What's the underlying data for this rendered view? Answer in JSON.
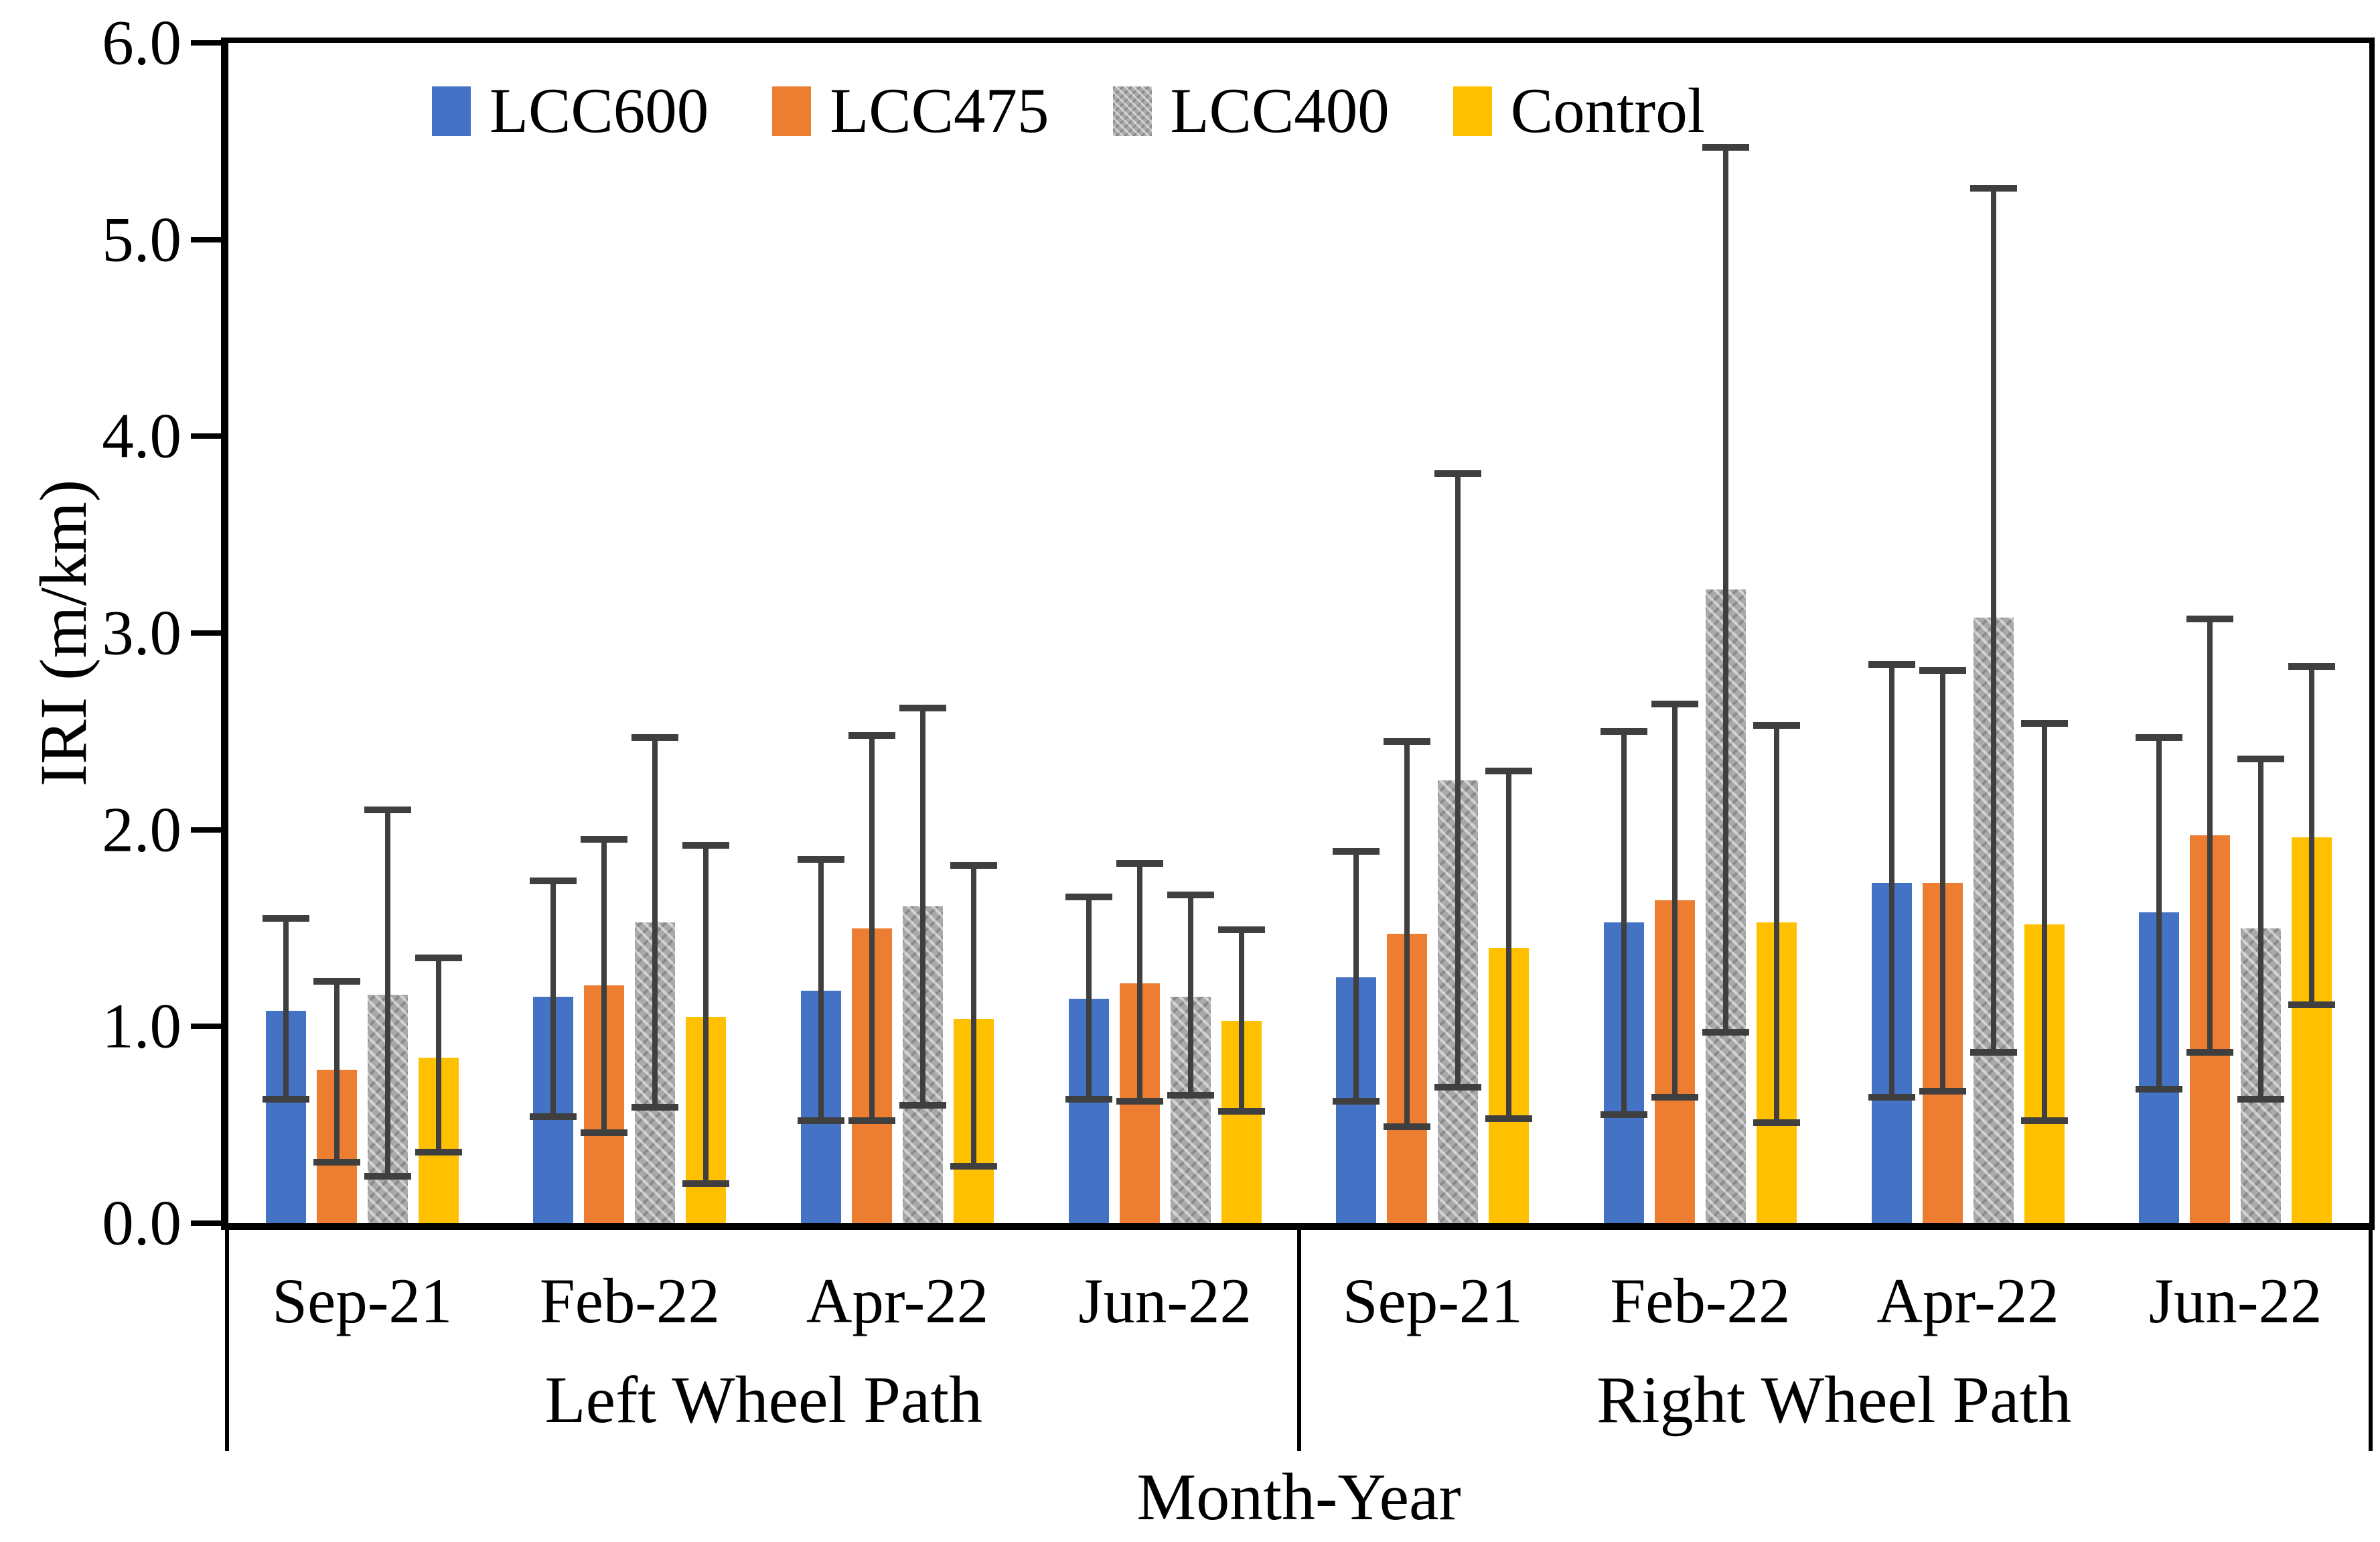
{
  "page": {
    "background": "#ffffff",
    "y_axis_title": "IRI (m/km)",
    "x_axis_title": "Month-Year"
  },
  "chart_data": {
    "type": "bar",
    "title": "",
    "ylabel": "IRI (m/km)",
    "xlabel": "Month-Year",
    "ylim": [
      0,
      6
    ],
    "ytick_step": 1.0,
    "ytick_labels": [
      "0.0",
      "1.0",
      "2.0",
      "3.0",
      "4.0",
      "5.0",
      "6.0"
    ],
    "grid": "off",
    "legend_position": "top-left-inside",
    "error_bar_color": "#3F3F3F",
    "axis_color": "#000000",
    "sections": [
      {
        "label": "Left Wheel Path",
        "months": [
          "Sep-21",
          "Feb-22",
          "Apr-22",
          "Jun-22"
        ]
      },
      {
        "label": "Right Wheel Path",
        "months": [
          "Sep-21",
          "Feb-22",
          "Apr-22",
          "Jun-22"
        ]
      }
    ],
    "categories": [
      "Left Wheel Path Sep-21",
      "Left Wheel Path Feb-22",
      "Left Wheel Path Apr-22",
      "Left Wheel Path Jun-22",
      "Right Wheel Path Sep-21",
      "Right Wheel Path Feb-22",
      "Right Wheel Path Apr-22",
      "Right Wheel Path Jun-22"
    ],
    "series": [
      {
        "name": "LCC600",
        "color": "#4472C4",
        "pattern": false,
        "values": [
          1.08,
          1.15,
          1.18,
          1.14,
          1.25,
          1.53,
          1.73,
          1.58
        ],
        "err_low": [
          0.63,
          0.54,
          0.52,
          0.63,
          0.62,
          0.55,
          0.64,
          0.68
        ],
        "err_high": [
          1.55,
          1.74,
          1.85,
          1.66,
          1.89,
          2.5,
          2.84,
          2.47
        ]
      },
      {
        "name": "LCC475",
        "color": "#ED7D31",
        "pattern": false,
        "values": [
          0.78,
          1.21,
          1.5,
          1.22,
          1.47,
          1.64,
          1.73,
          1.97
        ],
        "err_low": [
          0.31,
          0.46,
          0.52,
          0.62,
          0.49,
          0.64,
          0.67,
          0.87
        ],
        "err_high": [
          1.23,
          1.95,
          2.48,
          1.83,
          2.45,
          2.64,
          2.81,
          3.07
        ]
      },
      {
        "name": "LCC400",
        "color": "#A9A9A9",
        "pattern": true,
        "values": [
          1.16,
          1.53,
          1.61,
          1.15,
          2.25,
          3.22,
          3.08,
          1.5
        ],
        "err_low": [
          0.24,
          0.59,
          0.6,
          0.65,
          0.69,
          0.97,
          0.87,
          0.63
        ],
        "err_high": [
          2.1,
          2.47,
          2.62,
          1.67,
          3.81,
          5.47,
          5.26,
          2.36
        ]
      },
      {
        "name": "Control",
        "color": "#FFC000",
        "pattern": false,
        "values": [
          0.84,
          1.05,
          1.04,
          1.03,
          1.4,
          1.53,
          1.52,
          1.96
        ],
        "err_low": [
          0.36,
          0.2,
          0.29,
          0.57,
          0.53,
          0.51,
          0.52,
          1.11
        ],
        "err_high": [
          1.35,
          1.92,
          1.82,
          1.49,
          2.3,
          2.53,
          2.54,
          2.83
        ]
      }
    ]
  }
}
